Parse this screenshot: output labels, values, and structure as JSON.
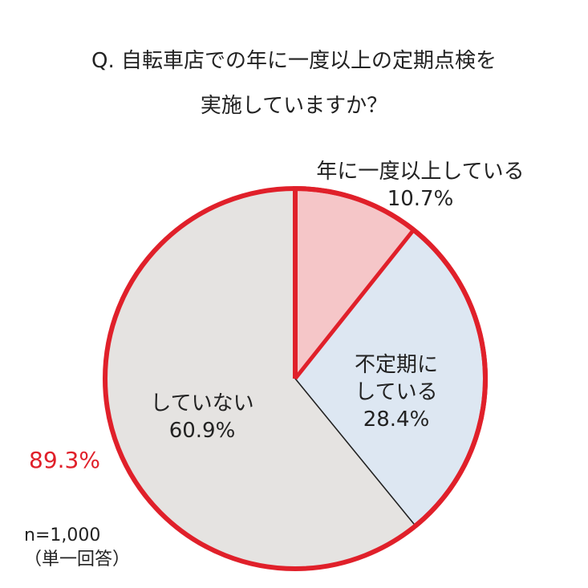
{
  "title_lines": [
    "Q. 自転車店での年に一度以上の定期点検を",
    "実施していますか？"
  ],
  "chart_data": {
    "type": "pie",
    "title": "Q. 自転車店での年に一度以上の定期点検を実施していますか？",
    "slices": [
      {
        "label": [
          "年に一度以上している"
        ],
        "value": 10.7,
        "value_label": "10.7%",
        "color": "#f5c6c8"
      },
      {
        "label": [
          "不定期に",
          "している"
        ],
        "value": 28.4,
        "value_label": "28.4%",
        "color": "#dde7f2"
      },
      {
        "label": [
          "していない"
        ],
        "value": 60.9,
        "value_label": "60.9%",
        "color": "#e5e3e1"
      }
    ],
    "highlight": {
      "value_label": "89.3%",
      "color": "#e0202a"
    },
    "legend": "none"
  },
  "sample": {
    "n": "n=1,000",
    "note": "（単一回答）"
  }
}
